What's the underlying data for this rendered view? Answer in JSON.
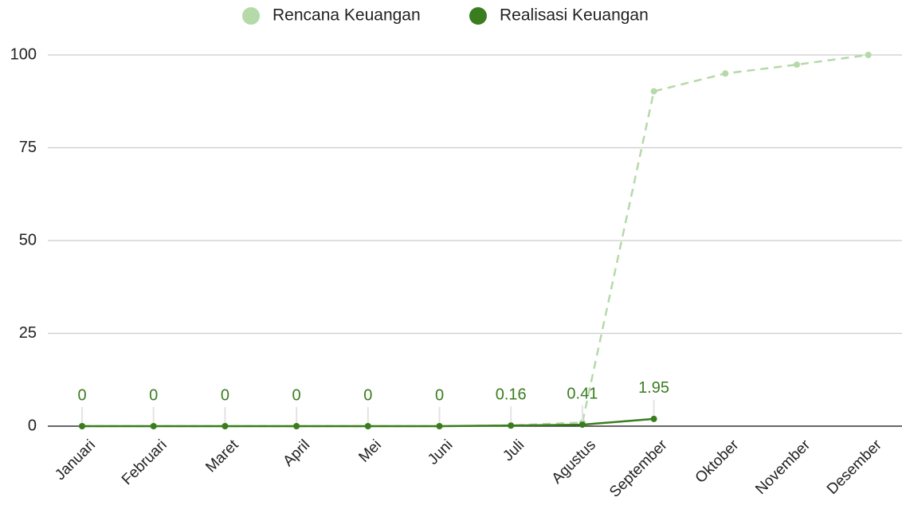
{
  "chart_data": {
    "type": "line",
    "categories": [
      "Januari",
      "Februari",
      "Maret",
      "April",
      "Mei",
      "Juni",
      "Juli",
      "Agustus",
      "September",
      "Oktober",
      "November",
      "Desember"
    ],
    "series": [
      {
        "name": "Rencana Keuangan",
        "color": "#b5d9a8",
        "dashed": true,
        "values": [
          0,
          0,
          0,
          0,
          0,
          0,
          0.2,
          1,
          90.2,
          95,
          97.4,
          100
        ]
      },
      {
        "name": "Realisasi Keuangan",
        "color": "#3a7d1e",
        "data_labels": true,
        "values": [
          0,
          0,
          0,
          0,
          0,
          0,
          0.16,
          0.41,
          1.95,
          null,
          null,
          null
        ]
      }
    ],
    "ylim": [
      0,
      100
    ],
    "yticks": [
      0,
      25,
      50,
      75,
      100
    ],
    "grid": true,
    "legend": "top"
  }
}
